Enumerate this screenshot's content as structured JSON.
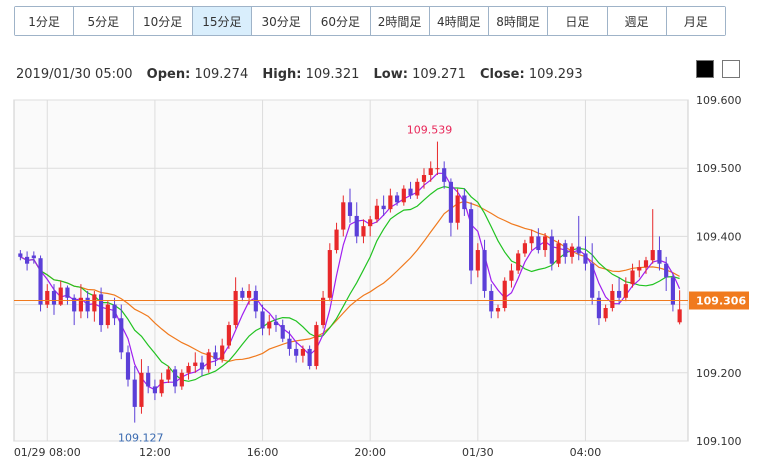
{
  "timeframes": [
    {
      "label": "1分足",
      "active": false
    },
    {
      "label": "5分足",
      "active": false
    },
    {
      "label": "10分足",
      "active": false
    },
    {
      "label": "15分足",
      "active": true
    },
    {
      "label": "30分足",
      "active": false
    },
    {
      "label": "60分足",
      "active": false
    },
    {
      "label": "2時間足",
      "active": false
    },
    {
      "label": "4時間足",
      "active": false
    },
    {
      "label": "8時間足",
      "active": false
    },
    {
      "label": "日足",
      "active": false
    },
    {
      "label": "週足",
      "active": false
    },
    {
      "label": "月足",
      "active": false
    }
  ],
  "ohlc": {
    "datetime": "2019/01/30 05:00",
    "open_label": "Open:",
    "open": "109.274",
    "high_label": "High:",
    "high": "109.321",
    "low_label": "Low:",
    "low": "109.271",
    "close_label": "Close:",
    "close": "109.293"
  },
  "chart_data": {
    "type": "candlestick",
    "ylim": [
      109.1,
      109.6
    ],
    "y_ticks": [
      "109.600",
      "109.500",
      "109.400",
      "109.300",
      "109.200",
      "109.100"
    ],
    "x_ticks": [
      "01/29 08:00",
      "12:00",
      "16:00",
      "20:00",
      "01/30",
      "04:00"
    ],
    "current_price": "109.306",
    "annotations": {
      "high": "109.539",
      "low": "109.127"
    },
    "colors": {
      "up": "#e8282a",
      "down": "#5b3fd8",
      "ma_short": "#a020f0",
      "ma_mid": "#22c322",
      "ma_long": "#f07a1e",
      "price_line": "#f07a1e"
    },
    "grid": true,
    "candles": [
      [
        109.375,
        109.38,
        109.365,
        109.37
      ],
      [
        109.37,
        109.378,
        109.35,
        109.36
      ],
      [
        109.372,
        109.378,
        109.36,
        109.368
      ],
      [
        109.368,
        109.372,
        109.29,
        109.3
      ],
      [
        109.3,
        109.33,
        109.295,
        109.32
      ],
      [
        109.32,
        109.33,
        109.285,
        109.3
      ],
      [
        109.3,
        109.335,
        109.298,
        109.325
      ],
      [
        109.325,
        109.328,
        109.3,
        109.31
      ],
      [
        109.31,
        109.315,
        109.27,
        109.29
      ],
      [
        109.29,
        109.33,
        109.28,
        109.31
      ],
      [
        109.31,
        109.32,
        109.28,
        109.29
      ],
      [
        109.29,
        109.32,
        109.275,
        109.315
      ],
      [
        109.315,
        109.325,
        109.26,
        109.27
      ],
      [
        109.27,
        109.305,
        109.265,
        109.3
      ],
      [
        109.3,
        109.31,
        109.27,
        109.28
      ],
      [
        109.28,
        109.3,
        109.22,
        109.23
      ],
      [
        109.23,
        109.24,
        109.18,
        109.19
      ],
      [
        109.19,
        109.21,
        109.127,
        109.15
      ],
      [
        109.15,
        109.22,
        109.14,
        109.2
      ],
      [
        109.2,
        109.21,
        109.17,
        109.18
      ],
      [
        109.18,
        109.19,
        109.16,
        109.17
      ],
      [
        109.17,
        109.2,
        109.165,
        109.19
      ],
      [
        109.19,
        109.21,
        109.185,
        109.205
      ],
      [
        109.205,
        109.21,
        109.17,
        109.18
      ],
      [
        109.18,
        109.205,
        109.175,
        109.2
      ],
      [
        109.2,
        109.215,
        109.19,
        109.21
      ],
      [
        109.21,
        109.23,
        109.2,
        109.215
      ],
      [
        109.215,
        109.225,
        109.195,
        109.205
      ],
      [
        109.205,
        109.235,
        109.2,
        109.23
      ],
      [
        109.23,
        109.24,
        109.21,
        109.22
      ],
      [
        109.22,
        109.25,
        109.215,
        109.24
      ],
      [
        109.24,
        109.275,
        109.235,
        109.27
      ],
      [
        109.27,
        109.34,
        109.265,
        109.32
      ],
      [
        109.32,
        109.325,
        109.305,
        109.31
      ],
      [
        109.31,
        109.33,
        109.3,
        109.32
      ],
      [
        109.32,
        109.328,
        109.28,
        109.29
      ],
      [
        109.29,
        109.3,
        109.255,
        109.265
      ],
      [
        109.265,
        109.285,
        109.255,
        109.275
      ],
      [
        109.275,
        109.285,
        109.26,
        109.27
      ],
      [
        109.27,
        109.278,
        109.245,
        109.25
      ],
      [
        109.25,
        109.262,
        109.225,
        109.235
      ],
      [
        109.235,
        109.245,
        109.215,
        109.225
      ],
      [
        109.225,
        109.24,
        109.215,
        109.235
      ],
      [
        109.235,
        109.24,
        109.205,
        109.21
      ],
      [
        109.21,
        109.275,
        109.205,
        109.27
      ],
      [
        109.27,
        109.32,
        109.265,
        109.31
      ],
      [
        109.31,
        109.39,
        109.305,
        109.38
      ],
      [
        109.38,
        109.42,
        109.375,
        109.41
      ],
      [
        109.41,
        109.46,
        109.4,
        109.45
      ],
      [
        109.45,
        109.47,
        109.42,
        109.43
      ],
      [
        109.43,
        109.45,
        109.39,
        109.4
      ],
      [
        109.4,
        109.425,
        109.39,
        109.415
      ],
      [
        109.415,
        109.43,
        109.4,
        109.425
      ],
      [
        109.425,
        109.455,
        109.42,
        109.445
      ],
      [
        109.445,
        109.46,
        109.43,
        109.44
      ],
      [
        109.44,
        109.47,
        109.435,
        109.46
      ],
      [
        109.46,
        109.465,
        109.445,
        109.45
      ],
      [
        109.45,
        109.475,
        109.445,
        109.47
      ],
      [
        109.47,
        109.48,
        109.455,
        109.46
      ],
      [
        109.46,
        109.485,
        109.455,
        109.48
      ],
      [
        109.48,
        109.5,
        109.47,
        109.49
      ],
      [
        109.49,
        109.51,
        109.48,
        109.5
      ],
      [
        109.5,
        109.539,
        109.49,
        109.5
      ],
      [
        109.5,
        109.51,
        109.47,
        109.48
      ],
      [
        109.48,
        109.485,
        109.4,
        109.42
      ],
      [
        109.42,
        109.47,
        109.41,
        109.46
      ],
      [
        109.46,
        109.47,
        109.43,
        109.44
      ],
      [
        109.44,
        109.45,
        109.33,
        109.35
      ],
      [
        109.35,
        109.39,
        109.34,
        109.38
      ],
      [
        109.38,
        109.395,
        109.31,
        109.32
      ],
      [
        109.32,
        109.33,
        109.28,
        109.29
      ],
      [
        109.29,
        109.3,
        109.28,
        109.295
      ],
      [
        109.295,
        109.34,
        109.29,
        109.335
      ],
      [
        109.335,
        109.36,
        109.325,
        109.35
      ],
      [
        109.35,
        109.38,
        109.345,
        109.375
      ],
      [
        109.375,
        109.395,
        109.37,
        109.39
      ],
      [
        109.39,
        109.41,
        109.38,
        109.4
      ],
      [
        109.4,
        109.412,
        109.375,
        109.38
      ],
      [
        109.38,
        109.405,
        109.37,
        109.4
      ],
      [
        109.4,
        109.41,
        109.35,
        109.36
      ],
      [
        109.36,
        109.395,
        109.355,
        109.39
      ],
      [
        109.39,
        109.395,
        109.36,
        109.37
      ],
      [
        109.37,
        109.39,
        109.36,
        109.385
      ],
      [
        109.385,
        109.43,
        109.365,
        109.375
      ],
      [
        109.375,
        109.4,
        109.35,
        109.36
      ],
      [
        109.36,
        109.39,
        109.3,
        109.31
      ],
      [
        109.31,
        109.32,
        109.27,
        109.28
      ],
      [
        109.28,
        109.3,
        109.275,
        109.295
      ],
      [
        109.295,
        109.33,
        109.29,
        109.32
      ],
      [
        109.32,
        109.34,
        109.3,
        109.31
      ],
      [
        109.31,
        109.34,
        109.305,
        109.33
      ],
      [
        109.33,
        109.36,
        109.325,
        109.35
      ],
      [
        109.35,
        109.365,
        109.34,
        109.355
      ],
      [
        109.355,
        109.37,
        109.345,
        109.365
      ],
      [
        109.365,
        109.44,
        109.36,
        109.38
      ],
      [
        109.38,
        109.4,
        109.35,
        109.36
      ],
      [
        109.36,
        109.37,
        109.32,
        109.34
      ],
      [
        109.34,
        109.345,
        109.29,
        109.3
      ],
      [
        109.274,
        109.321,
        109.271,
        109.293
      ]
    ]
  }
}
